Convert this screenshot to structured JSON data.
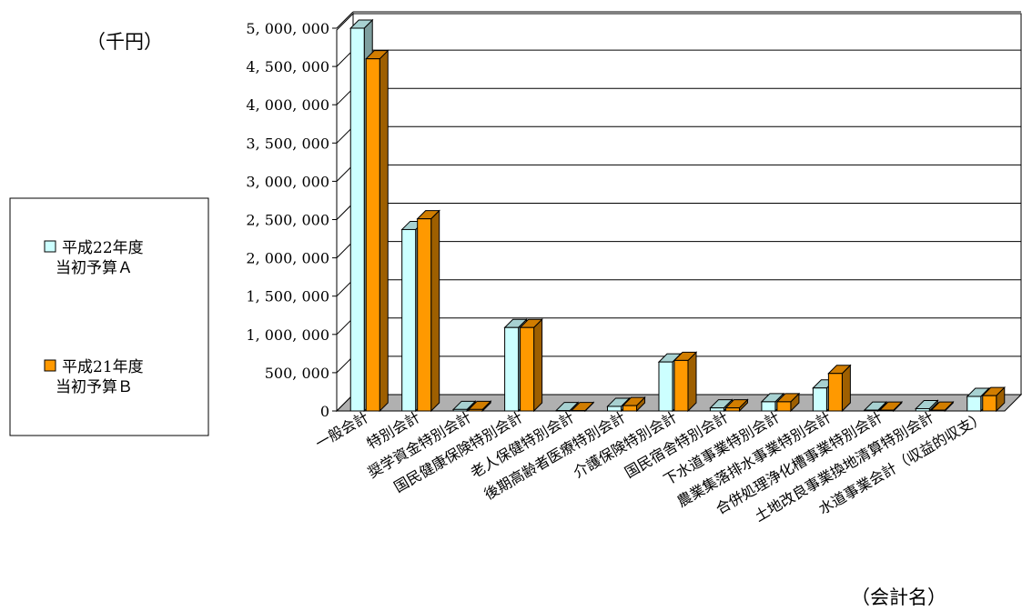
{
  "chart_data": {
    "type": "bar",
    "ylabel": "（千円）",
    "xlabel": "（会計名）",
    "ylim": [
      0,
      5000000
    ],
    "y_ticks": [
      "0",
      "500, 000",
      "1, 000, 000",
      "1, 500, 000",
      "2, 000, 000",
      "2, 500, 000",
      "3, 000, 000",
      "3, 500, 000",
      "4, 000, 000",
      "4, 500, 000",
      "5, 000, 000"
    ],
    "y_tick_values": [
      0,
      500000,
      1000000,
      1500000,
      2000000,
      2500000,
      3000000,
      3500000,
      4000000,
      4500000,
      5000000
    ],
    "categories": [
      "一般会計",
      "特別会計",
      "奨学資金特別会計",
      "国民健康保険特別会計",
      "老人保健特別会計",
      "後期高齢者医療特別会計",
      "介護保険特別会計",
      "国民宿舎特別会計",
      "下水道事業特別会計",
      "農業集落排水事業特別会計",
      "合併処理浄化槽事業特別会計",
      "土地改良事業換地清算特別会計",
      "水道事業会計（収益的収支）"
    ],
    "series": [
      {
        "name": "平成22年度\n当初予算Ａ",
        "values": [
          5000000,
          2370000,
          20000,
          1090000,
          5000,
          60000,
          640000,
          40000,
          120000,
          300000,
          10000,
          30000,
          190000
        ]
      },
      {
        "name": "平成21年度\n当初予算Ｂ",
        "values": [
          4600000,
          2510000,
          20000,
          1090000,
          5000,
          70000,
          660000,
          40000,
          120000,
          490000,
          10000,
          10000,
          200000
        ]
      }
    ],
    "legend_position": "left",
    "grid": true,
    "colors": {
      "series_a": "#ccffff",
      "series_b": "#ff9900",
      "floor": "#b0b0b0",
      "wall": "#ffffff",
      "edge": "#000000"
    }
  }
}
